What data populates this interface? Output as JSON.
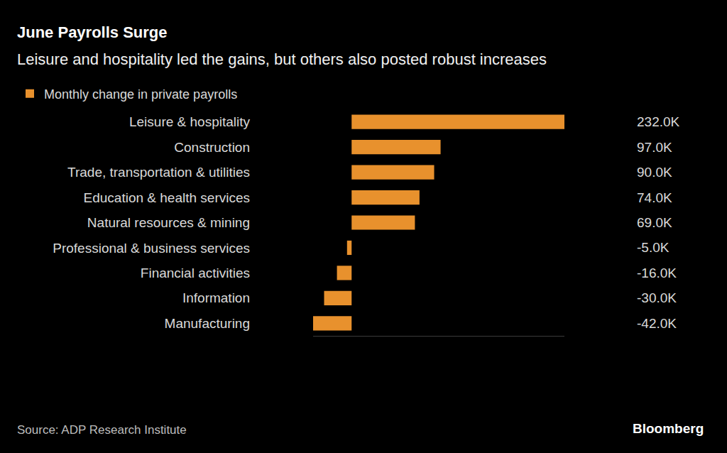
{
  "chart_data": {
    "type": "bar",
    "orientation": "horizontal",
    "title": "June Payrolls Surge",
    "subtitle": "Leisure and hospitality led the gains, but others also posted robust increases",
    "categories": [
      "Leisure & hospitality",
      "Construction",
      "Trade, transportation & utilities",
      "Education & health services",
      "Natural resources & mining",
      "Professional & business services",
      "Financial activities",
      "Information",
      "Manufacturing"
    ],
    "series": [
      {
        "name": "Monthly change in private payrolls",
        "color": "#e8912d",
        "values": [
          232000,
          97000,
          90000,
          74000,
          69000,
          -5000,
          -16000,
          -30000,
          -42000
        ],
        "value_labels": [
          "232.0K",
          "97.0K",
          "90.0K",
          "74.0K",
          "69.0K",
          "-5.0K",
          "-16.0K",
          "-30.0K",
          "-42.0K"
        ]
      }
    ],
    "xlim": [
      -42000,
      232000
    ],
    "xticks": [],
    "tick_labels": "y",
    "data_labels": true,
    "grid": false,
    "legend": "top left",
    "annotations": [
      "Source: ADP Research Institute",
      "Bloomberg"
    ]
  }
}
